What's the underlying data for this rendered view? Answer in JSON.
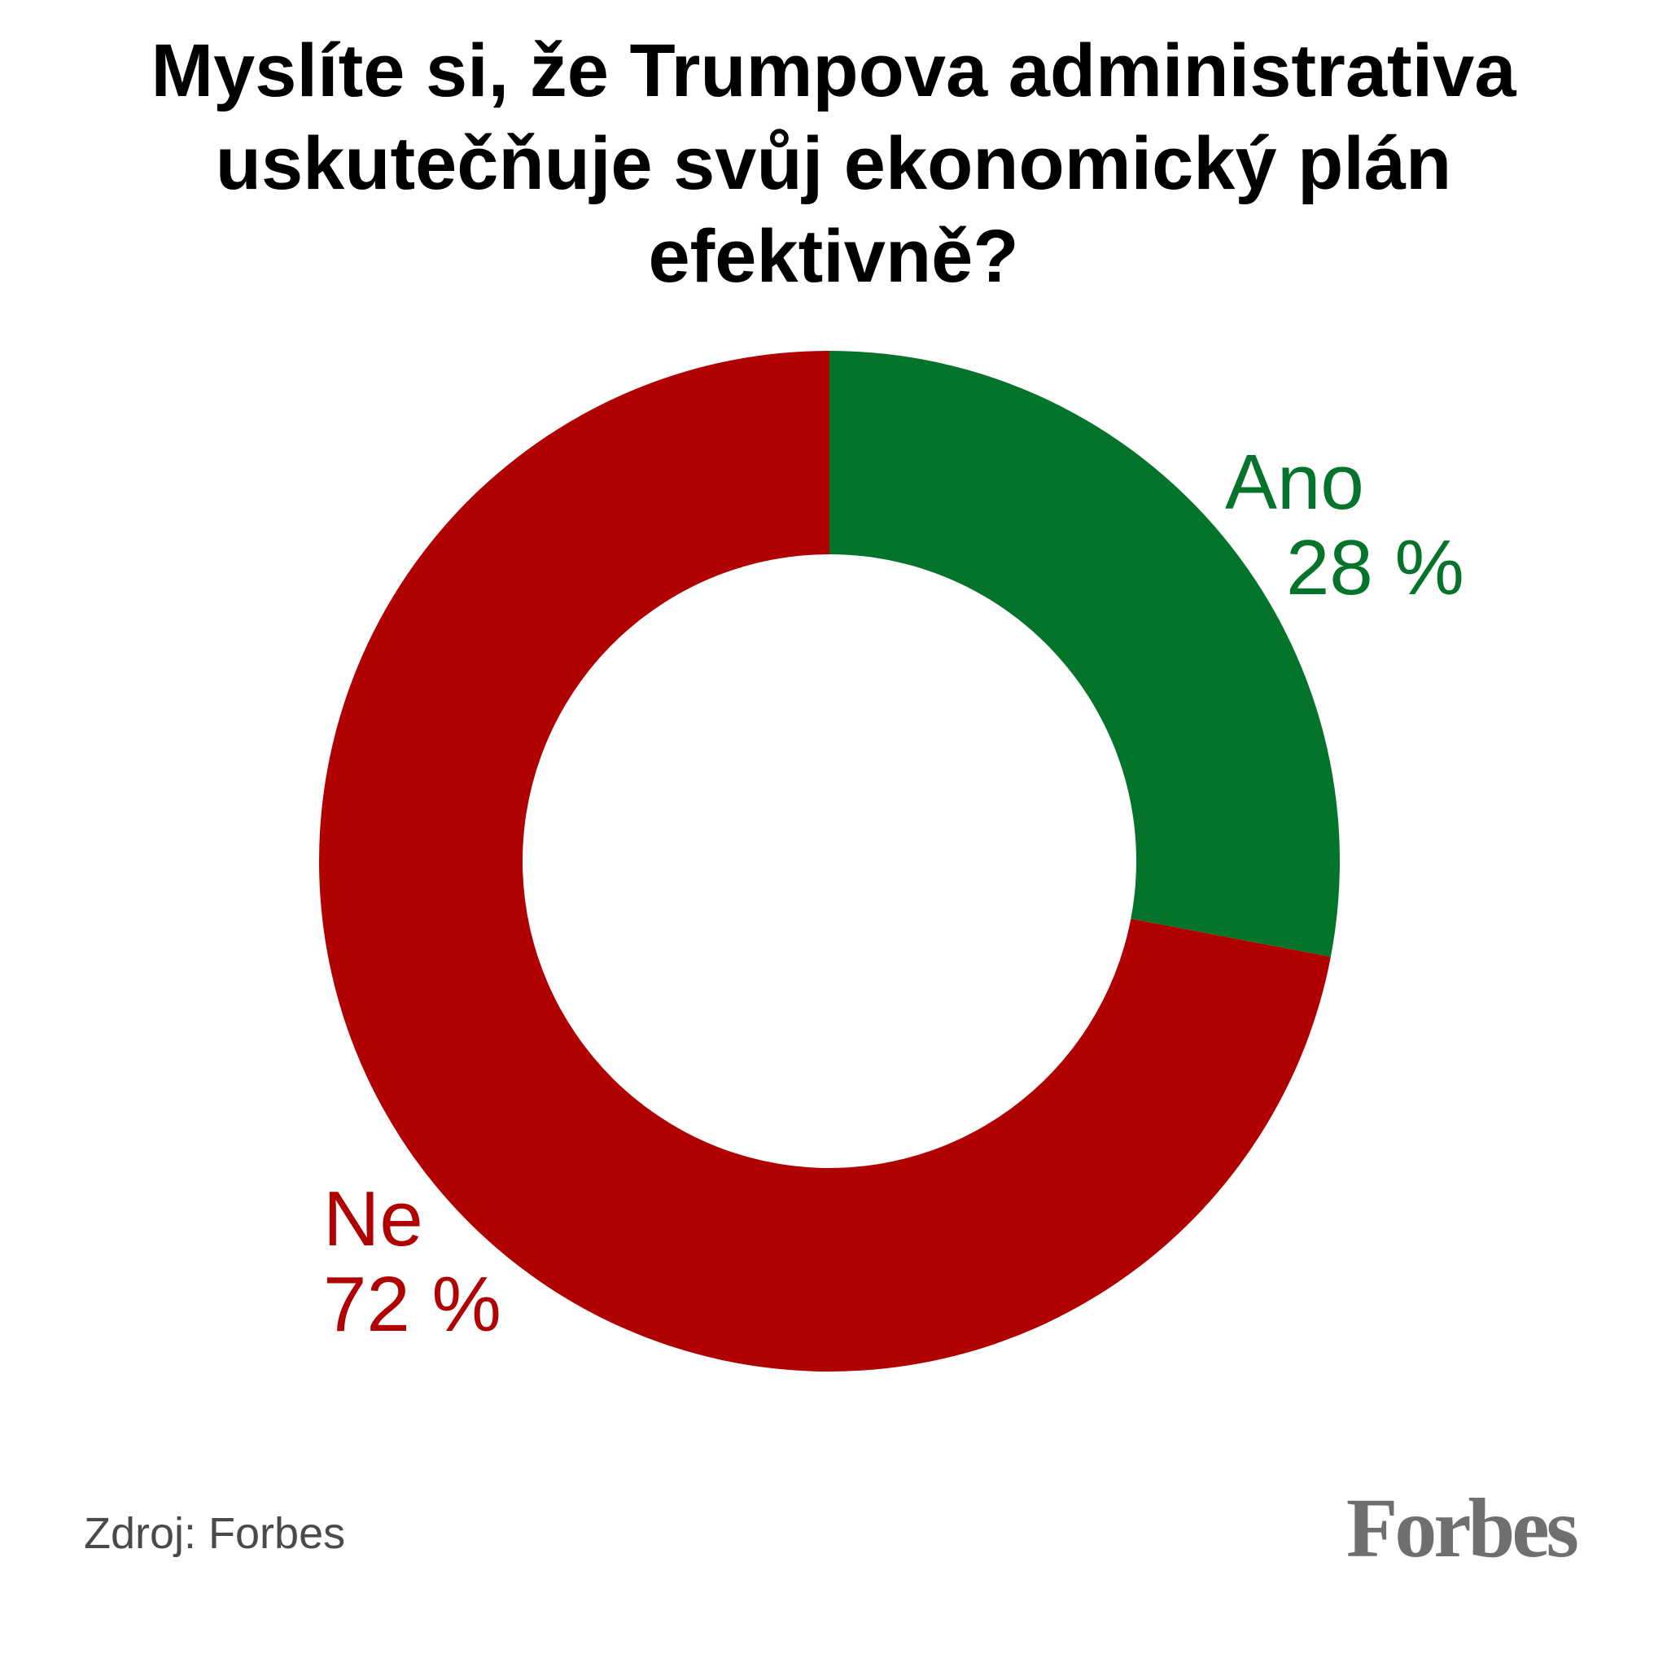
{
  "chart_data": {
    "type": "pie",
    "style": "donut",
    "title_lines": [
      "Myslíte si, že Trumpova administrativa",
      "uskutečňuje svůj ekonomický plán",
      "efektivně?"
    ],
    "slices": [
      {
        "label": "Ano",
        "value": 28,
        "value_label": "28 %",
        "color": "#04742a"
      },
      {
        "label": "Ne",
        "value": 72,
        "value_label": "72 %",
        "color": "#b00000"
      }
    ],
    "start": "12 o'clock, clockwise"
  },
  "footer": {
    "source": "Zdroj: Forbes",
    "logo": "Forbes"
  }
}
